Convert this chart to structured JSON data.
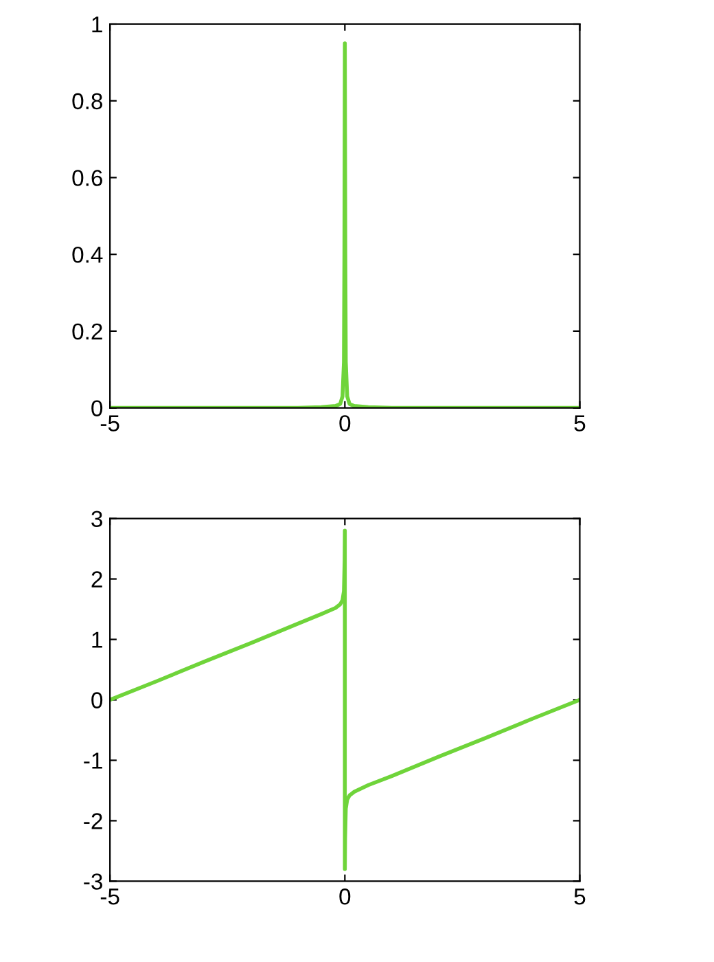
{
  "chart_data": [
    {
      "type": "line",
      "x": [
        -5,
        -3,
        -1,
        -0.5,
        -0.2,
        -0.1,
        -0.05,
        -0.02,
        -0.01,
        0,
        0.01,
        0.02,
        0.05,
        0.1,
        0.2,
        0.5,
        1,
        3,
        5
      ],
      "series": [
        {
          "color": "#6fd43a",
          "values": [
            0,
            0,
            0,
            0.002,
            0.005,
            0.01,
            0.03,
            0.12,
            0.4,
            0.95,
            0.4,
            0.12,
            0.03,
            0.01,
            0.005,
            0.002,
            0,
            0,
            0
          ]
        }
      ],
      "xlim": [
        -5,
        5
      ],
      "xticks": [
        -5,
        0,
        5
      ],
      "ylim": [
        0,
        1
      ],
      "yticks": [
        0,
        0.2,
        0.4,
        0.6,
        0.8,
        1
      ],
      "grid": false,
      "legend": false
    },
    {
      "type": "line",
      "x": [
        -5,
        -4,
        -3,
        -2,
        -1,
        -0.5,
        -0.2,
        -0.1,
        -0.05,
        -0.02,
        -0.005,
        0,
        0,
        0.005,
        0.02,
        0.05,
        0.1,
        0.2,
        0.5,
        1,
        2,
        3,
        4,
        5
      ],
      "series": [
        {
          "color": "#6fd43a",
          "values": [
            0,
            0.31,
            0.63,
            0.94,
            1.26,
            1.42,
            1.52,
            1.58,
            1.65,
            1.8,
            2.3,
            2.8,
            -2.8,
            -2.3,
            -1.8,
            -1.65,
            -1.58,
            -1.52,
            -1.41,
            -1.26,
            -0.94,
            -0.63,
            -0.31,
            0
          ]
        }
      ],
      "xlim": [
        -5,
        5
      ],
      "xticks": [
        -5,
        0,
        5
      ],
      "ylim": [
        -3,
        3
      ],
      "yticks": [
        -3,
        -2,
        -1,
        0,
        1,
        2,
        3
      ],
      "grid": false,
      "legend": false
    }
  ]
}
